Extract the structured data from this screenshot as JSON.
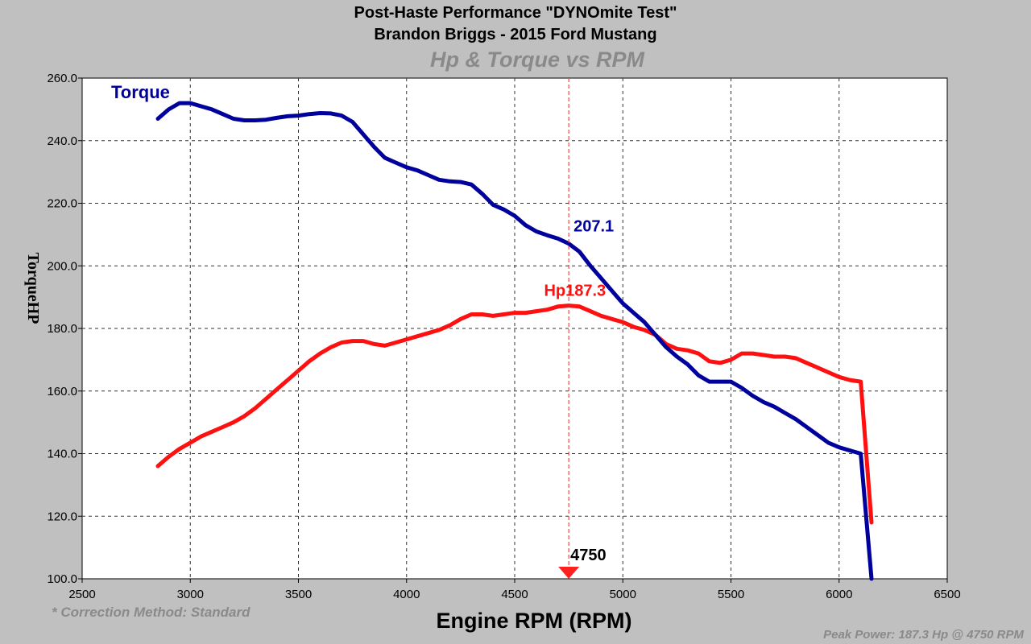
{
  "titles": {
    "line1": "Post-Haste Performance \"DYNOmite Test\"",
    "line2": "Brandon Briggs - 2015 Ford Mustang",
    "subtitle": "Hp & Torque vs RPM"
  },
  "footer": {
    "correction": "* Correction Method: Standard",
    "peak": "Peak Power: 187.3 Hp @ 4750 RPM"
  },
  "colors": {
    "background": "#c0c0c0",
    "plot_bg": "#ffffff",
    "torque": "#00009c",
    "hp": "#ff1010",
    "cursor": "#ff2020",
    "subtitle": "#8a8a8a"
  },
  "chart_data": {
    "type": "line",
    "xlabel": "Engine RPM (RPM)",
    "ylabel": "TorqueHP",
    "xlim": [
      2500,
      6500
    ],
    "ylim": [
      100,
      260
    ],
    "xticks": [
      "2500",
      "3000",
      "3500",
      "4000",
      "4500",
      "5000",
      "5500",
      "6000",
      "6500"
    ],
    "yticks": [
      "100.0",
      "120.0",
      "140.0",
      "160.0",
      "180.0",
      "200.0",
      "220.0",
      "240.0",
      "260.0"
    ],
    "grid": true,
    "cursor": {
      "x": 4750,
      "x_label": "4750",
      "torque_value": "207.1",
      "hp_value": "187.3",
      "hp_prefix": "Hp"
    },
    "series": [
      {
        "name": "Torque",
        "color": "#00009c",
        "points": [
          [
            2850,
            247
          ],
          [
            2900,
            250
          ],
          [
            2950,
            252
          ],
          [
            3000,
            252
          ],
          [
            3050,
            251
          ],
          [
            3100,
            250
          ],
          [
            3150,
            248.5
          ],
          [
            3200,
            247
          ],
          [
            3250,
            246.5
          ],
          [
            3300,
            246.5
          ],
          [
            3350,
            246.7
          ],
          [
            3400,
            247.3
          ],
          [
            3450,
            247.8
          ],
          [
            3500,
            248
          ],
          [
            3550,
            248.5
          ],
          [
            3600,
            248.8
          ],
          [
            3650,
            248.7
          ],
          [
            3700,
            248
          ],
          [
            3750,
            246
          ],
          [
            3800,
            242
          ],
          [
            3850,
            238
          ],
          [
            3900,
            234.5
          ],
          [
            3950,
            233
          ],
          [
            4000,
            231.5
          ],
          [
            4050,
            230.5
          ],
          [
            4100,
            229
          ],
          [
            4150,
            227.5
          ],
          [
            4200,
            227
          ],
          [
            4250,
            226.8
          ],
          [
            4300,
            226
          ],
          [
            4350,
            223
          ],
          [
            4400,
            219.5
          ],
          [
            4450,
            218
          ],
          [
            4500,
            216
          ],
          [
            4550,
            213
          ],
          [
            4600,
            211
          ],
          [
            4650,
            209.8
          ],
          [
            4700,
            208.7
          ],
          [
            4750,
            207.1
          ],
          [
            4800,
            204.5
          ],
          [
            4850,
            200
          ],
          [
            4900,
            196
          ],
          [
            4950,
            192
          ],
          [
            5000,
            188
          ],
          [
            5050,
            185
          ],
          [
            5100,
            182
          ],
          [
            5150,
            178
          ],
          [
            5200,
            174
          ],
          [
            5250,
            171
          ],
          [
            5300,
            168.5
          ],
          [
            5350,
            165
          ],
          [
            5400,
            163
          ],
          [
            5450,
            163
          ],
          [
            5500,
            163
          ],
          [
            5550,
            161
          ],
          [
            5600,
            158.5
          ],
          [
            5650,
            156.5
          ],
          [
            5700,
            155
          ],
          [
            5750,
            153
          ],
          [
            5800,
            151
          ],
          [
            5850,
            148.5
          ],
          [
            5900,
            146
          ],
          [
            5950,
            143.5
          ],
          [
            6000,
            142
          ],
          [
            6050,
            141
          ],
          [
            6100,
            140
          ],
          [
            6150,
            100
          ]
        ]
      },
      {
        "name": "Hp",
        "color": "#ff1010",
        "points": [
          [
            2850,
            136
          ],
          [
            2900,
            139
          ],
          [
            2950,
            141.5
          ],
          [
            3000,
            143.5
          ],
          [
            3050,
            145.5
          ],
          [
            3100,
            147
          ],
          [
            3150,
            148.5
          ],
          [
            3200,
            150
          ],
          [
            3250,
            152
          ],
          [
            3300,
            154.5
          ],
          [
            3350,
            157.5
          ],
          [
            3400,
            160.5
          ],
          [
            3450,
            163.5
          ],
          [
            3500,
            166.5
          ],
          [
            3550,
            169.5
          ],
          [
            3600,
            172
          ],
          [
            3650,
            174
          ],
          [
            3700,
            175.5
          ],
          [
            3750,
            176
          ],
          [
            3800,
            176
          ],
          [
            3850,
            175
          ],
          [
            3900,
            174.5
          ],
          [
            3950,
            175.5
          ],
          [
            4000,
            176.5
          ],
          [
            4050,
            177.5
          ],
          [
            4100,
            178.5
          ],
          [
            4150,
            179.5
          ],
          [
            4200,
            181
          ],
          [
            4250,
            183
          ],
          [
            4300,
            184.5
          ],
          [
            4350,
            184.5
          ],
          [
            4400,
            184
          ],
          [
            4450,
            184.5
          ],
          [
            4500,
            185
          ],
          [
            4550,
            185
          ],
          [
            4600,
            185.5
          ],
          [
            4650,
            186
          ],
          [
            4700,
            187
          ],
          [
            4750,
            187.3
          ],
          [
            4800,
            187
          ],
          [
            4850,
            185.5
          ],
          [
            4900,
            184
          ],
          [
            4950,
            183
          ],
          [
            5000,
            182
          ],
          [
            5050,
            180.5
          ],
          [
            5100,
            179.5
          ],
          [
            5150,
            178
          ],
          [
            5200,
            175
          ],
          [
            5250,
            173.5
          ],
          [
            5300,
            173
          ],
          [
            5350,
            172
          ],
          [
            5400,
            169.5
          ],
          [
            5450,
            169
          ],
          [
            5500,
            170
          ],
          [
            5550,
            172
          ],
          [
            5600,
            172
          ],
          [
            5650,
            171.5
          ],
          [
            5700,
            171
          ],
          [
            5750,
            171
          ],
          [
            5800,
            170.5
          ],
          [
            5850,
            169
          ],
          [
            5900,
            167.5
          ],
          [
            5950,
            166
          ],
          [
            6000,
            164.5
          ],
          [
            6050,
            163.5
          ],
          [
            6100,
            163
          ],
          [
            6150,
            118
          ]
        ]
      }
    ]
  }
}
